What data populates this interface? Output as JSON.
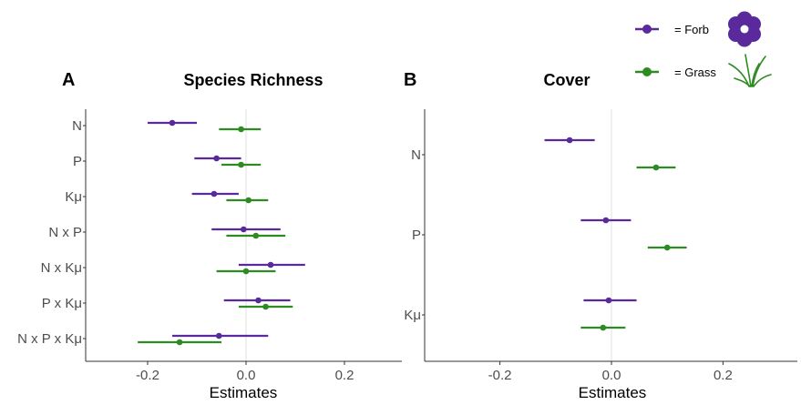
{
  "colors": {
    "forb": "#5a2a9c",
    "grass": "#2e8b22",
    "axis": "#333333",
    "zero_line": "#e0e0e0"
  },
  "legend": {
    "items": [
      {
        "key": "forb",
        "label": "= Forb",
        "icon": "flower-icon"
      },
      {
        "key": "grass",
        "label": "= Grass",
        "icon": "grass-icon"
      }
    ]
  },
  "chart_data": [
    {
      "type": "scatter",
      "panel": "A",
      "title": "Species Richness",
      "xlabel": "Estimates",
      "ylabel": "",
      "xlim": [
        -0.33,
        0.32
      ],
      "xticks": [
        -0.2,
        0.0,
        0.2
      ],
      "xtick_labels": [
        "-0.2",
        "0.0",
        "0.2"
      ],
      "categories": [
        "N",
        "P",
        "Kμ",
        "N x P",
        "N x Kμ",
        "P x Kμ",
        "N x P x Kμ"
      ],
      "series": [
        {
          "name": "Forb",
          "estimate": [
            -0.15,
            -0.06,
            -0.065,
            -0.005,
            0.05,
            0.025,
            -0.055
          ],
          "ci_low": [
            -0.2,
            -0.105,
            -0.11,
            -0.07,
            -0.015,
            -0.045,
            -0.15
          ],
          "ci_high": [
            -0.1,
            -0.01,
            -0.015,
            0.07,
            0.12,
            0.09,
            0.045
          ]
        },
        {
          "name": "Grass",
          "estimate": [
            -0.01,
            -0.01,
            0.005,
            0.02,
            0.0,
            0.04,
            -0.135
          ],
          "ci_low": [
            -0.055,
            -0.05,
            -0.04,
            -0.04,
            -0.06,
            -0.015,
            -0.22
          ],
          "ci_high": [
            0.03,
            0.03,
            0.045,
            0.08,
            0.06,
            0.095,
            -0.05
          ]
        }
      ]
    },
    {
      "type": "scatter",
      "panel": "B",
      "title": "Cover",
      "xlabel": "Estimates",
      "ylabel": "",
      "xlim": [
        -0.33,
        0.32
      ],
      "xticks": [
        -0.2,
        0.0,
        0.2
      ],
      "xtick_labels": [
        "-0.2",
        "0.0",
        "0.2"
      ],
      "categories": [
        "N",
        "P",
        "Kμ"
      ],
      "series": [
        {
          "name": "Forb",
          "estimate": [
            -0.075,
            -0.01,
            -0.005
          ],
          "ci_low": [
            -0.12,
            -0.055,
            -0.05
          ],
          "ci_high": [
            -0.03,
            0.035,
            0.045
          ]
        },
        {
          "name": "Grass",
          "estimate": [
            0.08,
            0.1,
            -0.015
          ],
          "ci_low": [
            0.045,
            0.065,
            -0.055
          ],
          "ci_high": [
            0.115,
            0.135,
            0.025
          ]
        }
      ]
    }
  ]
}
